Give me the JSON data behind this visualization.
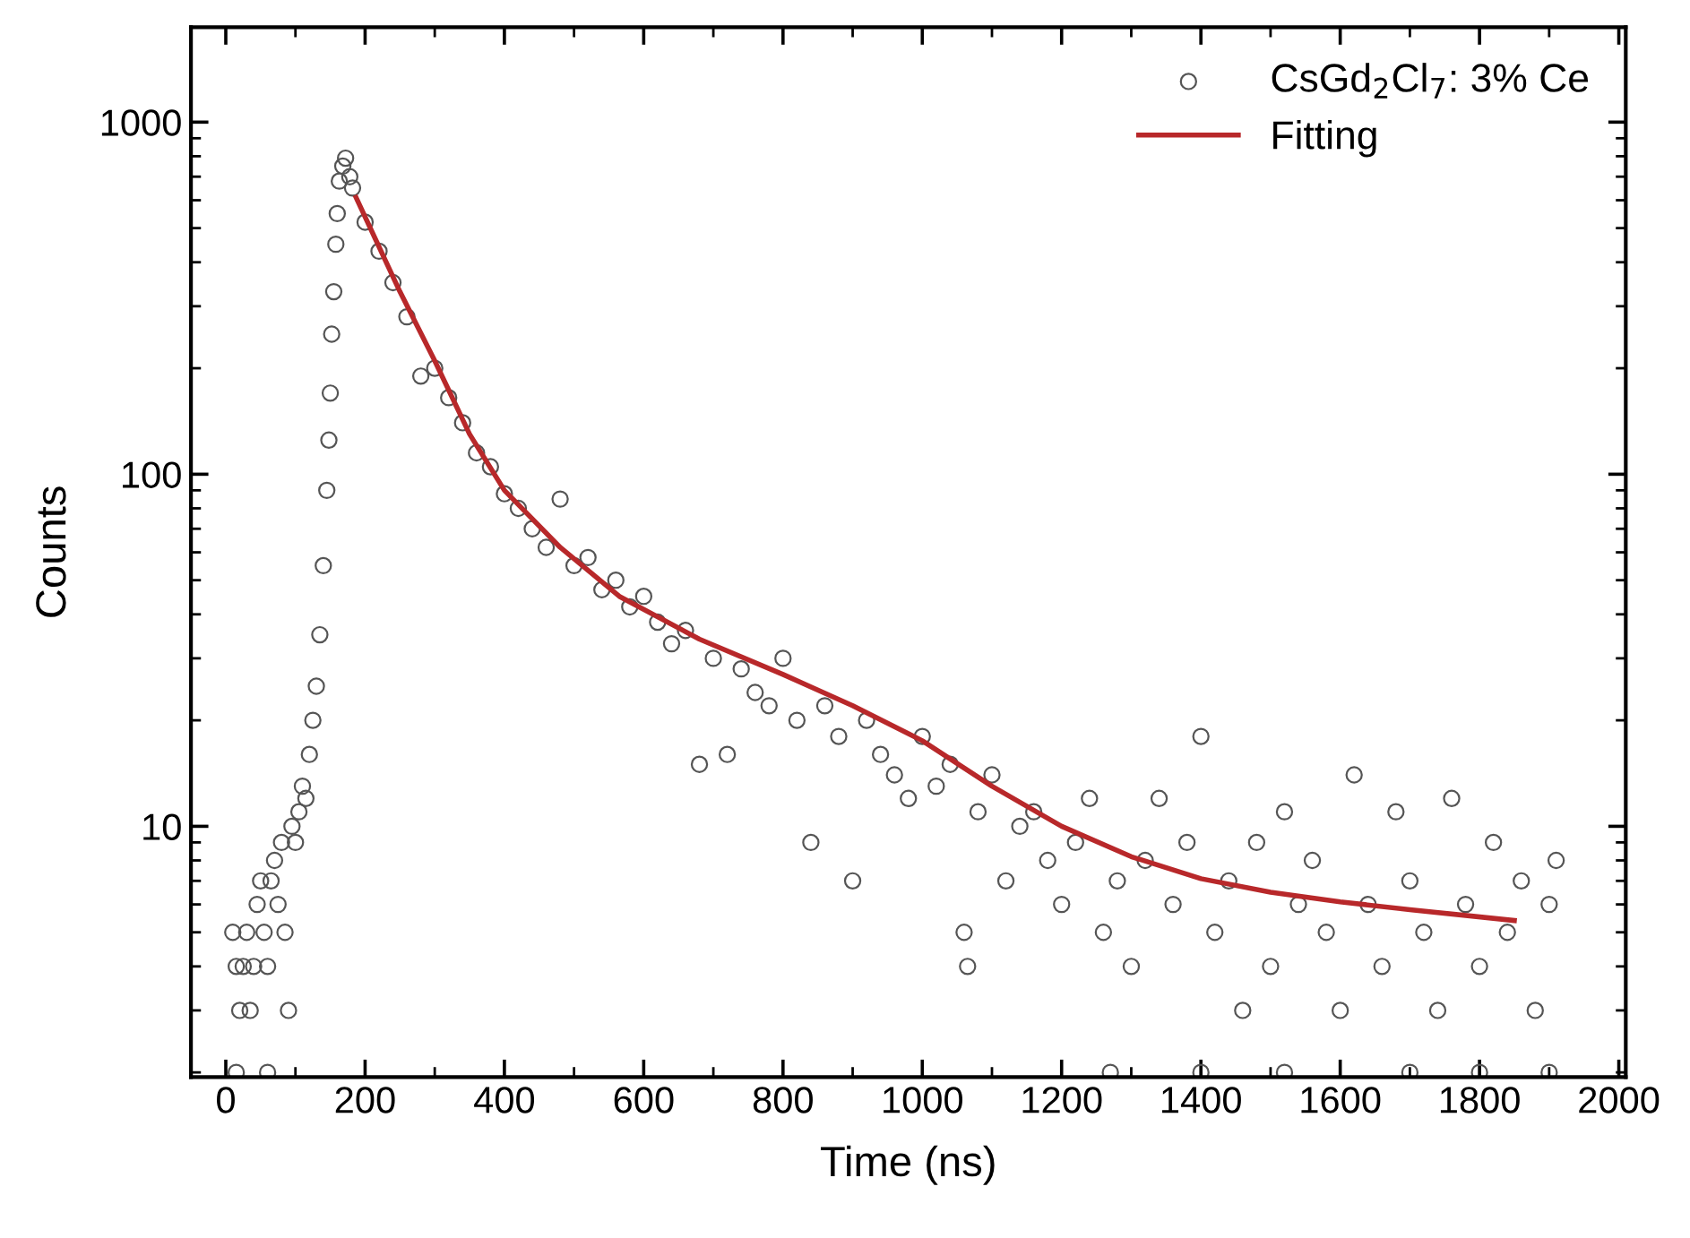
{
  "chart_data": {
    "type": "scatter",
    "xlabel": "Time (ns)",
    "ylabel": "Counts",
    "log": "y",
    "legend": "top right",
    "grid": false,
    "xlim": [
      -50,
      2010
    ],
    "xticks": [
      0,
      200,
      400,
      600,
      800,
      1000,
      1200,
      1400,
      1600,
      1800,
      2000
    ],
    "ylim": [
      1.94,
      1860
    ],
    "yticks": [
      10,
      100,
      1000
    ],
    "series": [
      {
        "name": "CsGd$_{2}$Cl$_{7}$: 3% Ce",
        "marker": "circle",
        "color": "#555555",
        "x": [
          10,
          15,
          20,
          25,
          30,
          35,
          40,
          45,
          50,
          55,
          60,
          65,
          70,
          75,
          80,
          85,
          90,
          95,
          100,
          105,
          110,
          115,
          120,
          125,
          130,
          135,
          140,
          145,
          148,
          150,
          152,
          155,
          158,
          160,
          163,
          168,
          172,
          178,
          182,
          15,
          60,
          1270,
          1400,
          1520,
          1700,
          1800,
          1900,
          200,
          220,
          240,
          260,
          280,
          300,
          320,
          340,
          360,
          380,
          400,
          420,
          440,
          460,
          480,
          500,
          520,
          540,
          560,
          580,
          600,
          620,
          640,
          660,
          680,
          700,
          720,
          740,
          760,
          780,
          800,
          820,
          840,
          860,
          880,
          900,
          920,
          940,
          960,
          980,
          1000,
          1020,
          1040,
          1060,
          1065,
          1080,
          1100,
          1120,
          1140,
          1160,
          1180,
          1200,
          1220,
          1240,
          1260,
          1280,
          1300,
          1320,
          1340,
          1360,
          1380,
          1400,
          1420,
          1440,
          1460,
          1480,
          1500,
          1520,
          1540,
          1560,
          1580,
          1600,
          1620,
          1640,
          1660,
          1680,
          1700,
          1720,
          1740,
          1760,
          1780,
          1800,
          1820,
          1840,
          1860,
          1880,
          1900,
          1910
        ],
        "values": [
          5,
          4,
          3,
          4,
          5,
          3,
          4,
          6,
          7,
          5,
          4,
          7,
          8,
          6,
          9,
          5,
          3,
          10,
          9,
          11,
          13,
          12,
          16,
          20,
          25,
          35,
          55,
          90,
          125,
          170,
          250,
          330,
          450,
          550,
          680,
          750,
          790,
          700,
          650,
          2,
          2,
          2,
          2,
          2,
          2,
          2,
          2,
          520,
          430,
          350,
          280,
          190,
          200,
          165,
          140,
          115,
          105,
          88,
          80,
          70,
          62,
          85,
          55,
          58,
          47,
          50,
          42,
          45,
          38,
          33,
          36,
          15,
          30,
          16,
          28,
          24,
          22,
          30,
          20,
          9,
          22,
          18,
          7,
          20,
          16,
          14,
          12,
          18,
          13,
          15,
          5,
          4,
          11,
          14,
          7,
          10,
          11,
          8,
          6,
          9,
          12,
          5,
          7,
          4,
          8,
          12,
          6,
          9,
          18,
          5,
          7,
          3,
          9,
          4,
          11,
          6,
          8,
          5,
          3,
          14,
          6,
          4,
          11,
          7,
          5,
          3,
          12,
          6,
          4,
          9,
          5,
          7,
          3,
          6,
          8
        ]
      },
      {
        "name": "Fitting",
        "type": "line",
        "line_style": "solid",
        "color": "#b8282a",
        "x": [
          187,
          250,
          300,
          350,
          400,
          480,
          565,
          680,
          800,
          900,
          1000,
          1100,
          1200,
          1300,
          1400,
          1500,
          1600,
          1700,
          1850
        ],
        "values": [
          611,
          330,
          210,
          130,
          90,
          62,
          45,
          34,
          27,
          22,
          17.5,
          13,
          10,
          8.2,
          7.1,
          6.5,
          6.1,
          5.8,
          5.4
        ]
      }
    ]
  }
}
